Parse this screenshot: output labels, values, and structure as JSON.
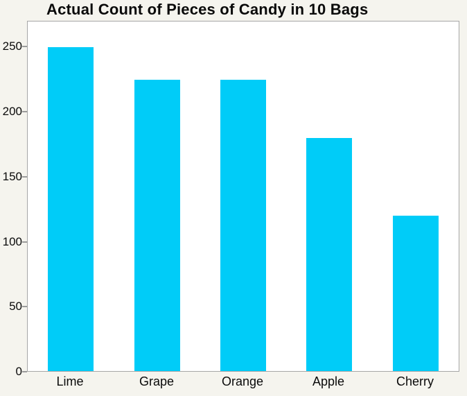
{
  "chart_data": {
    "type": "bar",
    "title": "Actual Count of Pieces of Candy in 10 Bags",
    "categories": [
      "Lime",
      "Grape",
      "Orange",
      "Apple",
      "Cherry"
    ],
    "values": [
      250,
      225,
      225,
      180,
      120
    ],
    "xlabel": "",
    "ylabel": "",
    "ylim": [
      0,
      270
    ],
    "yticks": [
      0,
      50,
      100,
      150,
      200,
      250
    ],
    "grid": false,
    "legend": "none",
    "colors": {
      "bar": "#00ccf8",
      "bar_edge": "#bfe9f5",
      "plot_background": "#ffffff",
      "figure_background": "#f5f4ee",
      "plot_border": "#a6a6a6",
      "tick": "#9a9a9a",
      "text": "#0a0a0a"
    }
  }
}
